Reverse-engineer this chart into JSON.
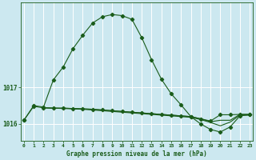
{
  "xlabel": "Graphe pression niveau de la mer (hPa)",
  "background_color": "#cce8f0",
  "grid_color": "#ffffff",
  "line_color": "#1a5c1a",
  "marker_color": "#1a5c1a",
  "x_ticks": [
    0,
    1,
    2,
    3,
    4,
    5,
    6,
    7,
    8,
    9,
    10,
    11,
    12,
    13,
    14,
    15,
    16,
    17,
    18,
    19,
    20,
    21,
    22,
    23
  ],
  "yticks": [
    1016,
    1017
  ],
  "ylim": [
    1015.55,
    1019.3
  ],
  "xlim": [
    -0.3,
    23.3
  ],
  "s1_x": [
    0,
    1,
    2,
    3,
    4,
    5,
    6,
    7,
    8,
    9,
    10,
    11,
    12,
    13,
    14,
    15,
    16,
    17,
    18,
    19,
    20,
    21,
    22,
    23
  ],
  "s1_y": [
    1016.1,
    1016.5,
    1016.46,
    1017.2,
    1017.55,
    1018.05,
    1018.42,
    1018.75,
    1018.92,
    1018.98,
    1018.95,
    1018.85,
    1018.35,
    1017.75,
    1017.22,
    1016.82,
    1016.52,
    1016.2,
    1016.0,
    1015.85,
    1015.78,
    1015.92,
    1016.22,
    1016.25
  ],
  "s2_x": [
    0,
    1,
    2,
    3,
    4,
    5,
    6,
    7,
    8,
    9,
    10,
    11,
    12,
    13,
    14,
    15,
    16,
    17,
    18,
    19,
    20,
    21,
    22,
    23
  ],
  "s2_y": [
    1016.1,
    1016.48,
    1016.44,
    1016.43,
    1016.43,
    1016.42,
    1016.41,
    1016.4,
    1016.38,
    1016.36,
    1016.34,
    1016.32,
    1016.3,
    1016.28,
    1016.26,
    1016.24,
    1016.22,
    1016.2,
    1016.14,
    1016.08,
    1016.25,
    1016.25,
    1016.26,
    1016.26
  ],
  "s3_x": [
    2,
    3,
    4,
    5,
    6,
    7,
    8,
    9,
    10,
    11,
    12,
    13,
    14,
    15,
    16,
    17,
    18,
    19,
    20,
    21,
    22,
    23
  ],
  "s3_y": [
    1016.44,
    1016.43,
    1016.43,
    1016.42,
    1016.41,
    1016.4,
    1016.38,
    1016.36,
    1016.34,
    1016.32,
    1016.3,
    1016.28,
    1016.26,
    1016.24,
    1016.22,
    1016.2,
    1016.14,
    1016.06,
    1016.1,
    1016.1,
    1016.26,
    1016.26
  ],
  "s4_x": [
    2,
    3,
    4,
    5,
    6,
    7,
    8,
    9,
    10,
    11,
    12,
    13,
    14,
    15,
    16,
    17,
    18,
    19,
    20,
    21,
    22,
    23
  ],
  "s4_y": [
    1016.44,
    1016.43,
    1016.42,
    1016.41,
    1016.4,
    1016.38,
    1016.36,
    1016.34,
    1016.32,
    1016.3,
    1016.28,
    1016.26,
    1016.24,
    1016.22,
    1016.2,
    1016.18,
    1016.12,
    1016.04,
    1015.95,
    1016.05,
    1016.24,
    1016.24
  ]
}
